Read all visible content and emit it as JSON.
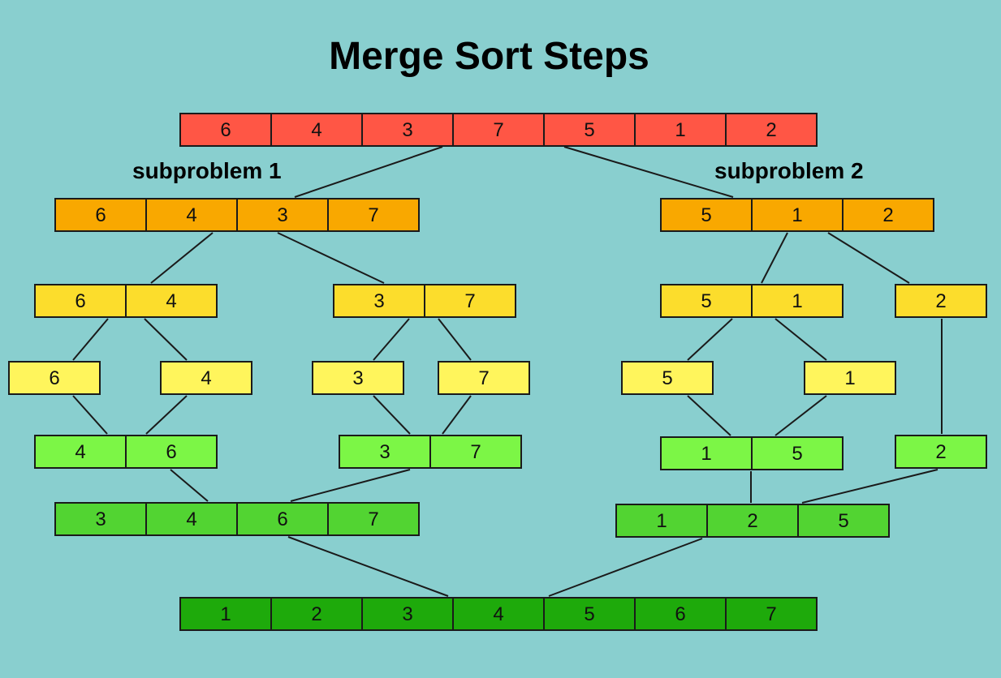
{
  "title": "Merge Sort Steps",
  "labels": {
    "subproblem_1": "subproblem 1",
    "subproblem_2": "subproblem 2"
  },
  "colors": {
    "background": "#89CFCF",
    "original": "#FF5645",
    "split_1": "#F9A800",
    "split_2": "#FCDD2C",
    "singletons": "#FFF55C",
    "merge_1": "#7CF646",
    "merge_2": "#52D432",
    "final": "#1EAA0B"
  },
  "arrays": [
    {
      "id": "root",
      "stage": "original",
      "values": [
        "6",
        "4",
        "3",
        "7",
        "5",
        "1",
        "2"
      ]
    },
    {
      "id": "left-half",
      "stage": "split_1",
      "values": [
        "6",
        "4",
        "3",
        "7"
      ]
    },
    {
      "id": "right-half",
      "stage": "split_1",
      "values": [
        "5",
        "1",
        "2"
      ]
    },
    {
      "id": "ll",
      "stage": "split_2",
      "values": [
        "6",
        "4"
      ]
    },
    {
      "id": "lr",
      "stage": "split_2",
      "values": [
        "3",
        "7"
      ]
    },
    {
      "id": "rl",
      "stage": "split_2",
      "values": [
        "5",
        "1"
      ]
    },
    {
      "id": "rr",
      "stage": "split_2",
      "values": [
        "2"
      ]
    },
    {
      "id": "s6",
      "stage": "singletons",
      "values": [
        "6"
      ]
    },
    {
      "id": "s4",
      "stage": "singletons",
      "values": [
        "4"
      ]
    },
    {
      "id": "s3",
      "stage": "singletons",
      "values": [
        "3"
      ]
    },
    {
      "id": "s7",
      "stage": "singletons",
      "values": [
        "7"
      ]
    },
    {
      "id": "s5",
      "stage": "singletons",
      "values": [
        "5"
      ]
    },
    {
      "id": "s1",
      "stage": "singletons",
      "values": [
        "1"
      ]
    },
    {
      "id": "m46",
      "stage": "merge_1",
      "values": [
        "4",
        "6"
      ]
    },
    {
      "id": "m37",
      "stage": "merge_1",
      "values": [
        "3",
        "7"
      ]
    },
    {
      "id": "m15",
      "stage": "merge_1",
      "values": [
        "1",
        "5"
      ]
    },
    {
      "id": "m2",
      "stage": "merge_1",
      "values": [
        "2"
      ]
    },
    {
      "id": "m3467",
      "stage": "merge_2",
      "values": [
        "3",
        "4",
        "6",
        "7"
      ]
    },
    {
      "id": "m125",
      "stage": "merge_2",
      "values": [
        "1",
        "2",
        "5"
      ]
    },
    {
      "id": "final",
      "stage": "final",
      "values": [
        "1",
        "2",
        "3",
        "4",
        "5",
        "6",
        "7"
      ]
    }
  ],
  "edges": [
    [
      "root",
      "left-half"
    ],
    [
      "root",
      "right-half"
    ],
    [
      "left-half",
      "ll"
    ],
    [
      "left-half",
      "lr"
    ],
    [
      "right-half",
      "rl"
    ],
    [
      "right-half",
      "rr"
    ],
    [
      "ll",
      "s6"
    ],
    [
      "ll",
      "s4"
    ],
    [
      "lr",
      "s3"
    ],
    [
      "lr",
      "s7"
    ],
    [
      "rl",
      "s5"
    ],
    [
      "rl",
      "s1"
    ],
    [
      "rr",
      "m2"
    ],
    [
      "s6",
      "m46"
    ],
    [
      "s4",
      "m46"
    ],
    [
      "s3",
      "m37"
    ],
    [
      "s7",
      "m37"
    ],
    [
      "s5",
      "m15"
    ],
    [
      "s1",
      "m15"
    ],
    [
      "m46",
      "m3467"
    ],
    [
      "m37",
      "m3467"
    ],
    [
      "m15",
      "m125"
    ],
    [
      "m2",
      "m125"
    ],
    [
      "m3467",
      "final"
    ],
    [
      "m125",
      "final"
    ]
  ]
}
